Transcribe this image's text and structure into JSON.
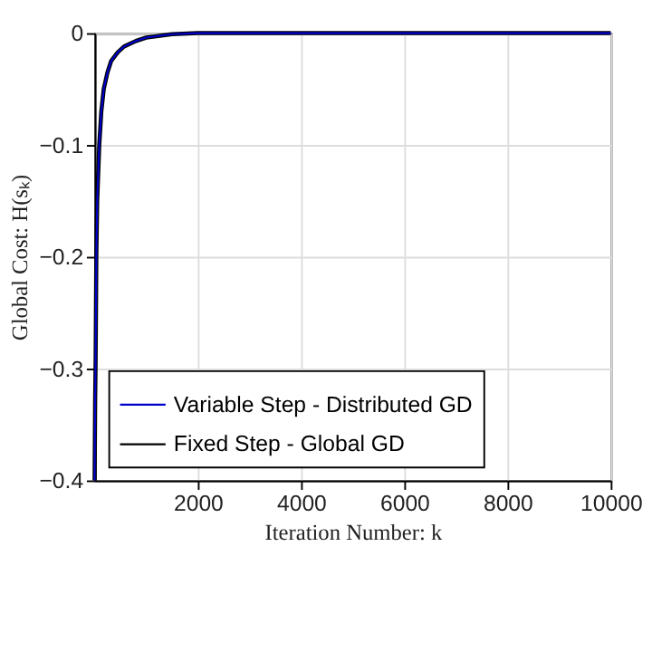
{
  "chart_data": {
    "type": "line",
    "xlabel": "Iteration Number: k",
    "ylabel": "Global Cost: H(sₖ)",
    "x": [
      0,
      10,
      20,
      33,
      50,
      90,
      130,
      177,
      250,
      320,
      450,
      570,
      800,
      1000,
      1500,
      2000,
      3000,
      10000
    ],
    "series": [
      {
        "name": "Variable Step - Distributed GD",
        "color": "#0000cc",
        "values": [
          -0.4,
          -0.33,
          -0.29,
          -0.2,
          -0.15,
          -0.1,
          -0.07,
          -0.05,
          -0.035,
          -0.025,
          -0.017,
          -0.012,
          -0.007,
          -0.004,
          -0.001,
          0,
          0,
          0
        ]
      },
      {
        "name": "Fixed Step - Global GD",
        "color": "#000000",
        "values": [
          -0.4,
          -0.33,
          -0.29,
          -0.2,
          -0.15,
          -0.1,
          -0.07,
          -0.05,
          -0.035,
          -0.025,
          -0.017,
          -0.012,
          -0.007,
          -0.004,
          -0.001,
          0,
          0,
          0
        ]
      }
    ],
    "xlim": [
      0,
      10000
    ],
    "xticks": [
      2000,
      4000,
      6000,
      8000,
      10000
    ],
    "ylim": [
      -0.4,
      0
    ],
    "yticks": [
      -0.4,
      -0.3,
      -0.2,
      -0.1,
      0
    ],
    "grid": true,
    "legend": "bottom",
    "marker": "none",
    "line_style": "solid"
  }
}
